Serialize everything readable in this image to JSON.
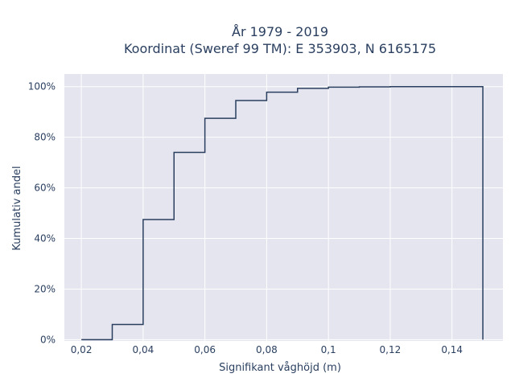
{
  "chart_data": {
    "type": "line",
    "subtype": "cumulative-step",
    "title_line1": "År 1979 - 2019",
    "title_line2": "Koordinat (Sweref 99 TM): E 353903, N 6165175",
    "xlabel": "Signifikant våghöjd (m)",
    "ylabel": "Kumulativ andel",
    "xlim": [
      0.0145,
      0.1565
    ],
    "ylim": [
      -0.005,
      1.05
    ],
    "x_ticks": [
      0.02,
      0.04,
      0.06,
      0.08,
      0.1,
      0.12,
      0.14
    ],
    "x_tick_labels": [
      "0,02",
      "0,04",
      "0,06",
      "0,08",
      "0,1",
      "0,12",
      "0,14"
    ],
    "y_ticks": [
      0,
      0.2,
      0.4,
      0.6,
      0.8,
      1.0
    ],
    "y_tick_labels": [
      "0%",
      "20%",
      "40%",
      "60%",
      "80%",
      "100%"
    ],
    "grid": true,
    "bin_edges": [
      0.02,
      0.03,
      0.04,
      0.05,
      0.06,
      0.07,
      0.08,
      0.09,
      0.1,
      0.11,
      0.12,
      0.13,
      0.14,
      0.15
    ],
    "values": [
      0.0,
      0.06,
      0.475,
      0.74,
      0.875,
      0.945,
      0.978,
      0.993,
      0.998,
      0.999,
      1.0,
      1.0,
      1.0
    ],
    "colors": {
      "background": "#e5e5ef",
      "grid": "#ffffff",
      "line": "#2a3f5f"
    }
  }
}
